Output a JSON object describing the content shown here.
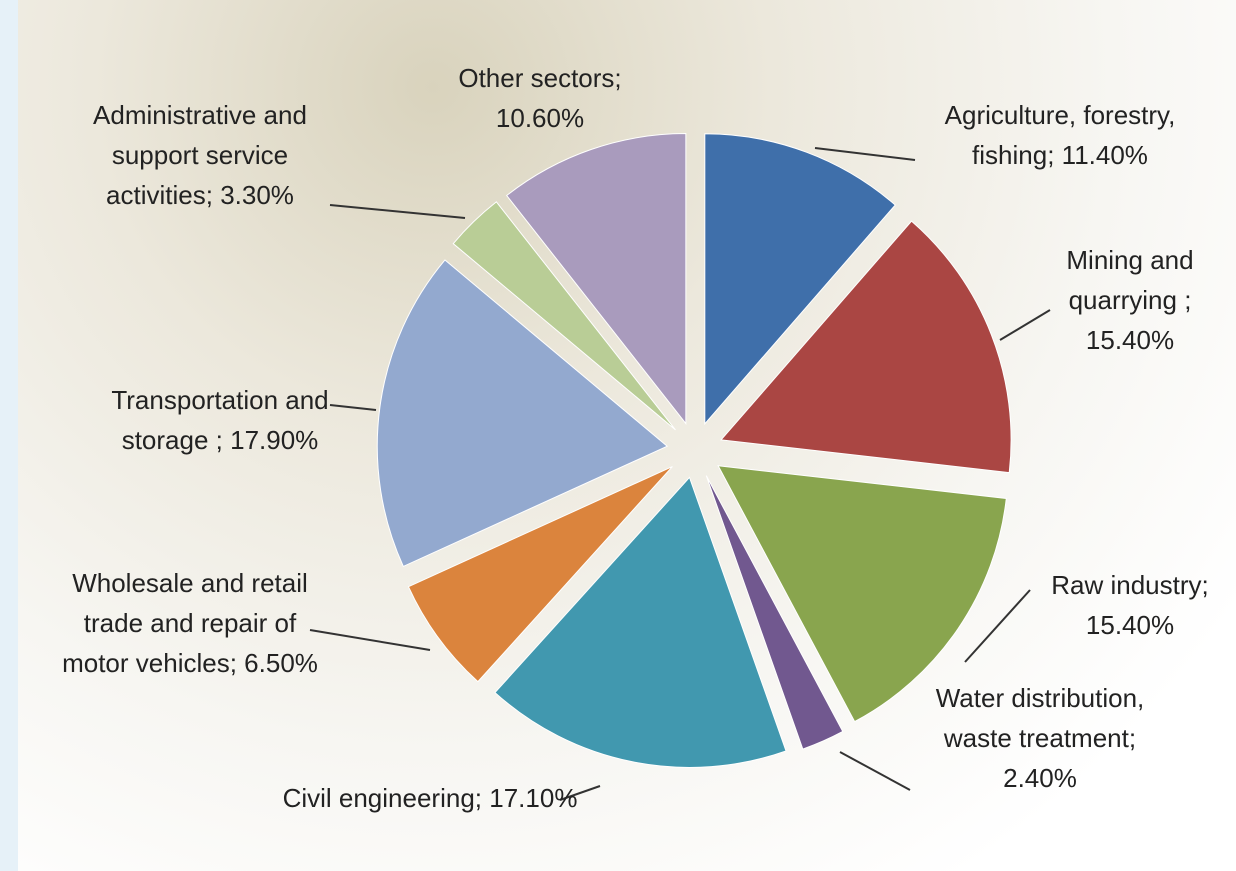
{
  "chart_data": {
    "type": "pie",
    "categories": [
      "Agriculture, forestry, fishing;",
      "Mining and quarrying ;",
      "Raw industry;",
      "Water distribution, waste treatment;",
      "Civil engineering;",
      "Wholesale and retail trade and repair of motor vehicles;",
      "Transportation and storage ;",
      "Administrative and support service activities;",
      "Other sectors;"
    ],
    "values": [
      11.4,
      15.4,
      15.4,
      2.4,
      17.1,
      6.5,
      17.9,
      3.3,
      10.6
    ],
    "value_labels": [
      "11.40%",
      "15.40%",
      "15.40%",
      "2.40%",
      "17.10%",
      "6.50%",
      "17.90%",
      "3.30%",
      "10.60%"
    ],
    "colors": [
      "#3f6faa",
      "#aa4643",
      "#89a54e",
      "#71588f",
      "#4198af",
      "#db843d",
      "#93a9cf",
      "#b9cd96",
      "#a99bbd"
    ]
  }
}
